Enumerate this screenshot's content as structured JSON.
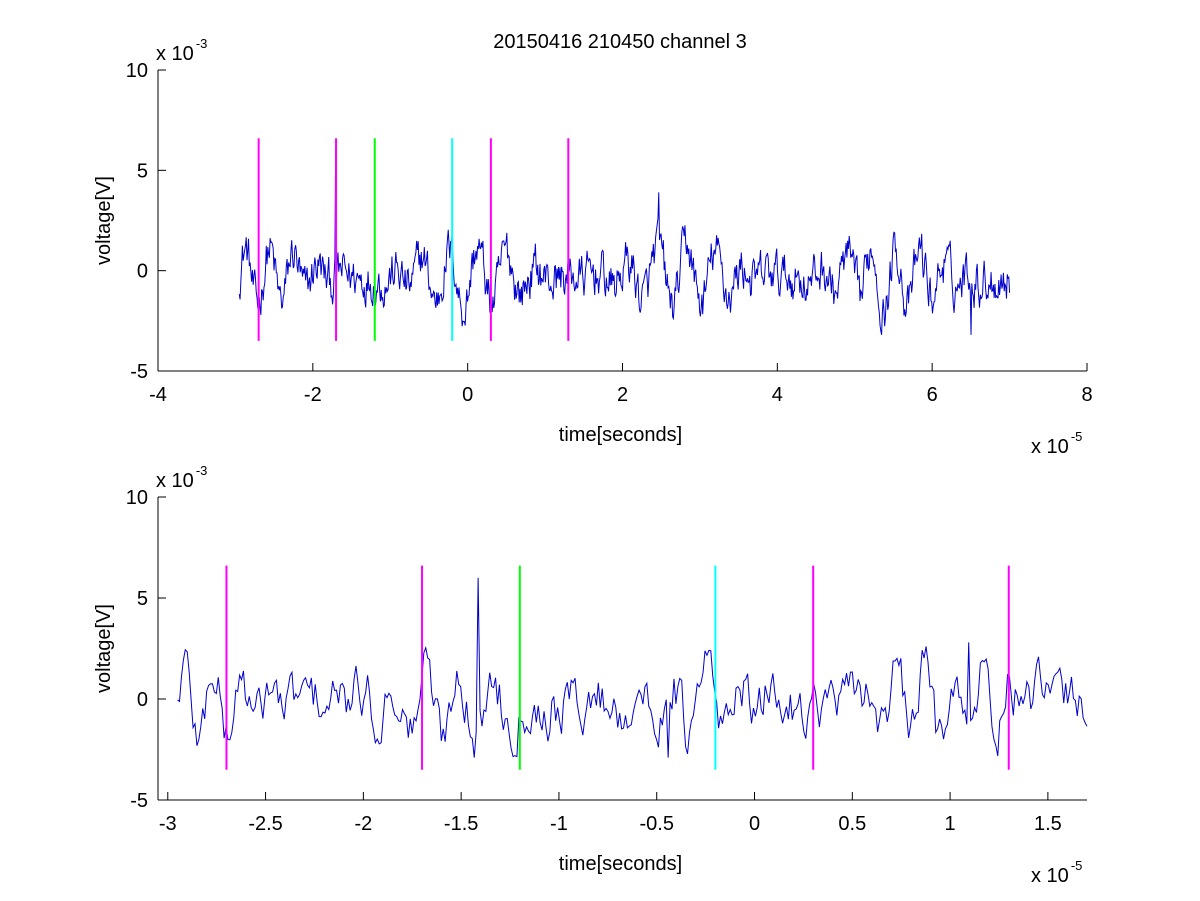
{
  "figure": {
    "title": "20150416 210450 channel 3"
  },
  "chart_data": [
    {
      "type": "line",
      "name": "top-panel",
      "xlabel": "time[seconds]",
      "ylabel": "voltage[V]",
      "xlim": [
        -4e-05,
        8e-05
      ],
      "ylim": [
        -0.005,
        0.01
      ],
      "x_ticks": [
        -4,
        -2,
        0,
        2,
        4,
        6,
        8
      ],
      "x_tick_labels": [
        "-4",
        "-2",
        "0",
        "2",
        "4",
        "6",
        "8"
      ],
      "y_ticks": [
        -5,
        0,
        5,
        10
      ],
      "y_tick_labels": [
        "-5",
        "0",
        "5",
        "10"
      ],
      "x_multiplier": "x 10",
      "x_exponent": "-5",
      "y_multiplier": "x 10",
      "y_exponent": "-3",
      "grid": false,
      "signal": {
        "color": "#0000cc",
        "x_start": -2.95e-05,
        "x_end": 7e-05,
        "samples": 1000,
        "ymin": -0.0032,
        "ymax": 0.0062
      },
      "markers": [
        {
          "x": -2.7e-05,
          "color": "#ff00ff"
        },
        {
          "x": -1.7e-05,
          "color": "#ff00ff"
        },
        {
          "x": -1.2e-05,
          "color": "#00ff00"
        },
        {
          "x": -2e-06,
          "color": "#00ffff"
        },
        {
          "x": 3e-06,
          "color": "#ff00ff"
        },
        {
          "x": 1.3e-05,
          "color": "#ff00ff"
        }
      ],
      "marker_y_range": [
        -0.0035,
        0.0066
      ]
    },
    {
      "type": "line",
      "name": "bottom-panel",
      "xlabel": "time[seconds]",
      "ylabel": "voltage[V]",
      "xlim": [
        -3.05e-05,
        1.7e-05
      ],
      "ylim": [
        -0.005,
        0.01
      ],
      "x_ticks": [
        -3,
        -2.5,
        -2,
        -1.5,
        -1,
        -0.5,
        0,
        0.5,
        1,
        1.5
      ],
      "x_tick_labels": [
        "-3",
        "-2.5",
        "-2",
        "-1.5",
        "-1",
        "-0.5",
        "0",
        "0.5",
        "1",
        "1.5"
      ],
      "y_ticks": [
        -5,
        0,
        5,
        10
      ],
      "y_tick_labels": [
        "-5",
        "0",
        "5",
        "10"
      ],
      "x_multiplier": "x 10",
      "x_exponent": "-5",
      "y_multiplier": "x 10",
      "y_exponent": "-3",
      "grid": false,
      "signal": {
        "color": "#0000cc",
        "x_start": -2.95e-05,
        "x_end": 1.7e-05,
        "samples": 470,
        "ymin": -0.0029,
        "ymax": 0.006
      },
      "markers": [
        {
          "x": -2.7e-05,
          "color": "#ff00ff"
        },
        {
          "x": -1.7e-05,
          "color": "#ff00ff"
        },
        {
          "x": -1.2e-05,
          "color": "#00ff00"
        },
        {
          "x": -2e-06,
          "color": "#00ffff"
        },
        {
          "x": 3e-06,
          "color": "#ff00ff"
        },
        {
          "x": 1.3e-05,
          "color": "#ff00ff"
        }
      ],
      "marker_y_range": [
        -0.0035,
        0.0066
      ]
    }
  ]
}
